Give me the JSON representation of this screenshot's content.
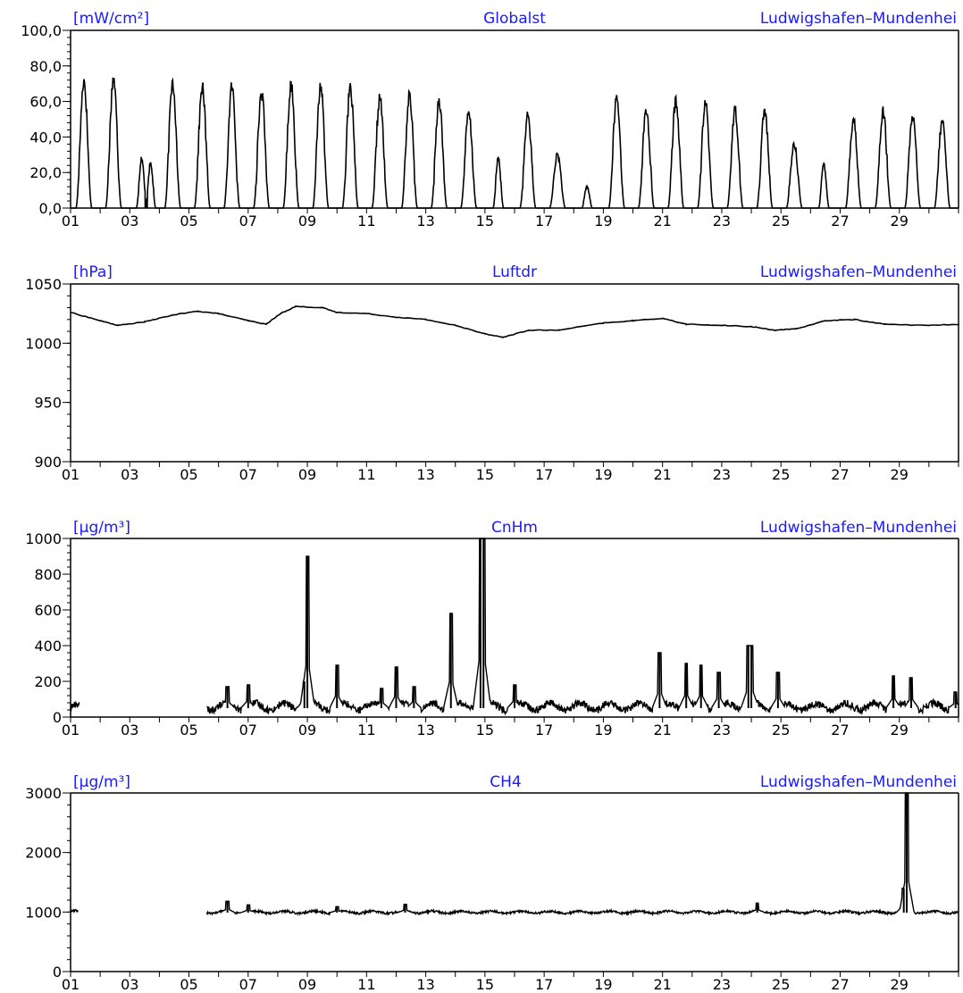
{
  "colors": {
    "header_text": "#1a1aff",
    "trace": "#000000",
    "axis": "#000000",
    "background": "#ffffff"
  },
  "x_axis": {
    "tick_labels": [
      "01",
      "03",
      "05",
      "07",
      "09",
      "11",
      "13",
      "15",
      "17",
      "19",
      "21",
      "23",
      "25",
      "27",
      "29"
    ],
    "day_min": 1,
    "day_max": 31
  },
  "chart_data": [
    {
      "type": "line",
      "unit": "[mW/cm²]",
      "title": "Globalst",
      "station": "Ludwigshafen–Mundenhei",
      "ylim": [
        0,
        100
      ],
      "y_tick_labels": [
        "0,0",
        "20,0",
        "40,0",
        "60,0",
        "80,0",
        "100,0"
      ],
      "y_tick_values": [
        0,
        20,
        40,
        60,
        80,
        100
      ],
      "daily_peak": [
        {
          "day": 1.45,
          "value": 72
        },
        {
          "day": 2.45,
          "value": 73
        },
        {
          "day": 3.4,
          "value": 28
        },
        {
          "day": 3.7,
          "value": 25
        },
        {
          "day": 4.45,
          "value": 71
        },
        {
          "day": 5.45,
          "value": 68
        },
        {
          "day": 6.45,
          "value": 68
        },
        {
          "day": 7.45,
          "value": 65
        },
        {
          "day": 8.45,
          "value": 70
        },
        {
          "day": 9.45,
          "value": 69
        },
        {
          "day": 10.45,
          "value": 67
        },
        {
          "day": 11.45,
          "value": 62
        },
        {
          "day": 12.45,
          "value": 63
        },
        {
          "day": 13.45,
          "value": 61
        },
        {
          "day": 14.45,
          "value": 53
        },
        {
          "day": 15.45,
          "value": 28
        },
        {
          "day": 16.45,
          "value": 52
        },
        {
          "day": 17.45,
          "value": 30
        },
        {
          "day": 18.45,
          "value": 12
        },
        {
          "day": 19.45,
          "value": 62
        },
        {
          "day": 20.45,
          "value": 55
        },
        {
          "day": 21.45,
          "value": 60
        },
        {
          "day": 22.45,
          "value": 59
        },
        {
          "day": 23.45,
          "value": 55
        },
        {
          "day": 24.45,
          "value": 55
        },
        {
          "day": 25.45,
          "value": 36
        },
        {
          "day": 26.45,
          "value": 25
        },
        {
          "day": 27.45,
          "value": 50
        },
        {
          "day": 28.45,
          "value": 54
        },
        {
          "day": 29.45,
          "value": 51
        },
        {
          "day": 30.45,
          "value": 49
        }
      ]
    },
    {
      "type": "line",
      "unit": "[hPa]",
      "title": "Luftdr",
      "station": "Ludwigshafen–Mundenhei",
      "ylim": [
        900,
        1050
      ],
      "y_tick_labels": [
        "900",
        "950",
        "1000",
        "1050"
      ],
      "y_tick_values": [
        900,
        950,
        1000,
        1050
      ],
      "points": [
        {
          "day": 1,
          "value": 1026
        },
        {
          "day": 2,
          "value": 1019
        },
        {
          "day": 2.6,
          "value": 1015
        },
        {
          "day": 3.5,
          "value": 1018
        },
        {
          "day": 4.5,
          "value": 1024
        },
        {
          "day": 5.3,
          "value": 1027
        },
        {
          "day": 6,
          "value": 1025
        },
        {
          "day": 7,
          "value": 1019
        },
        {
          "day": 7.6,
          "value": 1016
        },
        {
          "day": 8.1,
          "value": 1025
        },
        {
          "day": 8.6,
          "value": 1031
        },
        {
          "day": 9.5,
          "value": 1030
        },
        {
          "day": 10,
          "value": 1026
        },
        {
          "day": 11,
          "value": 1025
        },
        {
          "day": 12,
          "value": 1022
        },
        {
          "day": 13,
          "value": 1020
        },
        {
          "day": 14,
          "value": 1015
        },
        {
          "day": 15,
          "value": 1008
        },
        {
          "day": 15.6,
          "value": 1005
        },
        {
          "day": 16.5,
          "value": 1011
        },
        {
          "day": 17.5,
          "value": 1011
        },
        {
          "day": 19,
          "value": 1017
        },
        {
          "day": 20,
          "value": 1019
        },
        {
          "day": 21,
          "value": 1021
        },
        {
          "day": 21.8,
          "value": 1016
        },
        {
          "day": 23,
          "value": 1015
        },
        {
          "day": 24,
          "value": 1014
        },
        {
          "day": 24.8,
          "value": 1011
        },
        {
          "day": 25.5,
          "value": 1012
        },
        {
          "day": 26.5,
          "value": 1019
        },
        {
          "day": 27.5,
          "value": 1020
        },
        {
          "day": 28.5,
          "value": 1016
        },
        {
          "day": 30,
          "value": 1015
        },
        {
          "day": 31,
          "value": 1016
        }
      ]
    },
    {
      "type": "line",
      "unit": "[μg/m³]",
      "title": "CnHm",
      "station": "Ludwigshafen–Mundenhei",
      "ylim": [
        0,
        1000
      ],
      "y_tick_labels": [
        "0",
        "200",
        "400",
        "600",
        "800",
        "1000"
      ],
      "y_tick_values": [
        0,
        200,
        400,
        600,
        800,
        1000
      ],
      "segments": [
        {
          "start": 1,
          "end": 1.3,
          "base": 45
        },
        {
          "start": 5.6,
          "end": 31,
          "base": 50
        }
      ],
      "spikes": [
        {
          "day": 6.3,
          "value": 170
        },
        {
          "day": 7.0,
          "value": 180
        },
        {
          "day": 8.9,
          "value": 200
        },
        {
          "day": 9.0,
          "value": 900
        },
        {
          "day": 10.0,
          "value": 290
        },
        {
          "day": 11.5,
          "value": 160
        },
        {
          "day": 12.0,
          "value": 280
        },
        {
          "day": 12.6,
          "value": 170
        },
        {
          "day": 13.85,
          "value": 580
        },
        {
          "day": 14.85,
          "value": 1000
        },
        {
          "day": 14.95,
          "value": 1000
        },
        {
          "day": 16.0,
          "value": 180
        },
        {
          "day": 20.9,
          "value": 360
        },
        {
          "day": 21.8,
          "value": 300
        },
        {
          "day": 22.3,
          "value": 290
        },
        {
          "day": 22.9,
          "value": 250
        },
        {
          "day": 23.9,
          "value": 400
        },
        {
          "day": 24.0,
          "value": 400
        },
        {
          "day": 24.9,
          "value": 250
        },
        {
          "day": 26.3,
          "value": 80
        },
        {
          "day": 28.8,
          "value": 230
        },
        {
          "day": 29.4,
          "value": 220
        },
        {
          "day": 30.9,
          "value": 140
        }
      ]
    },
    {
      "type": "line",
      "unit": "[μg/m³]",
      "title": "CH4",
      "station": "Ludwigshafen–Mundenhei",
      "ylim": [
        0,
        3000
      ],
      "y_tick_labels": [
        "0",
        "1000",
        "2000",
        "3000"
      ],
      "y_tick_values": [
        0,
        1000,
        2000,
        3000
      ],
      "segments": [
        {
          "start": 1,
          "end": 1.25,
          "base": 1000
        },
        {
          "start": 5.6,
          "end": 31,
          "base": 990
        }
      ],
      "spikes": [
        {
          "day": 6.3,
          "value": 1180
        },
        {
          "day": 7.0,
          "value": 1120
        },
        {
          "day": 10.0,
          "value": 1090
        },
        {
          "day": 12.3,
          "value": 1130
        },
        {
          "day": 24.2,
          "value": 1150
        },
        {
          "day": 29.15,
          "value": 1400
        },
        {
          "day": 29.25,
          "value": 3000
        }
      ]
    }
  ]
}
